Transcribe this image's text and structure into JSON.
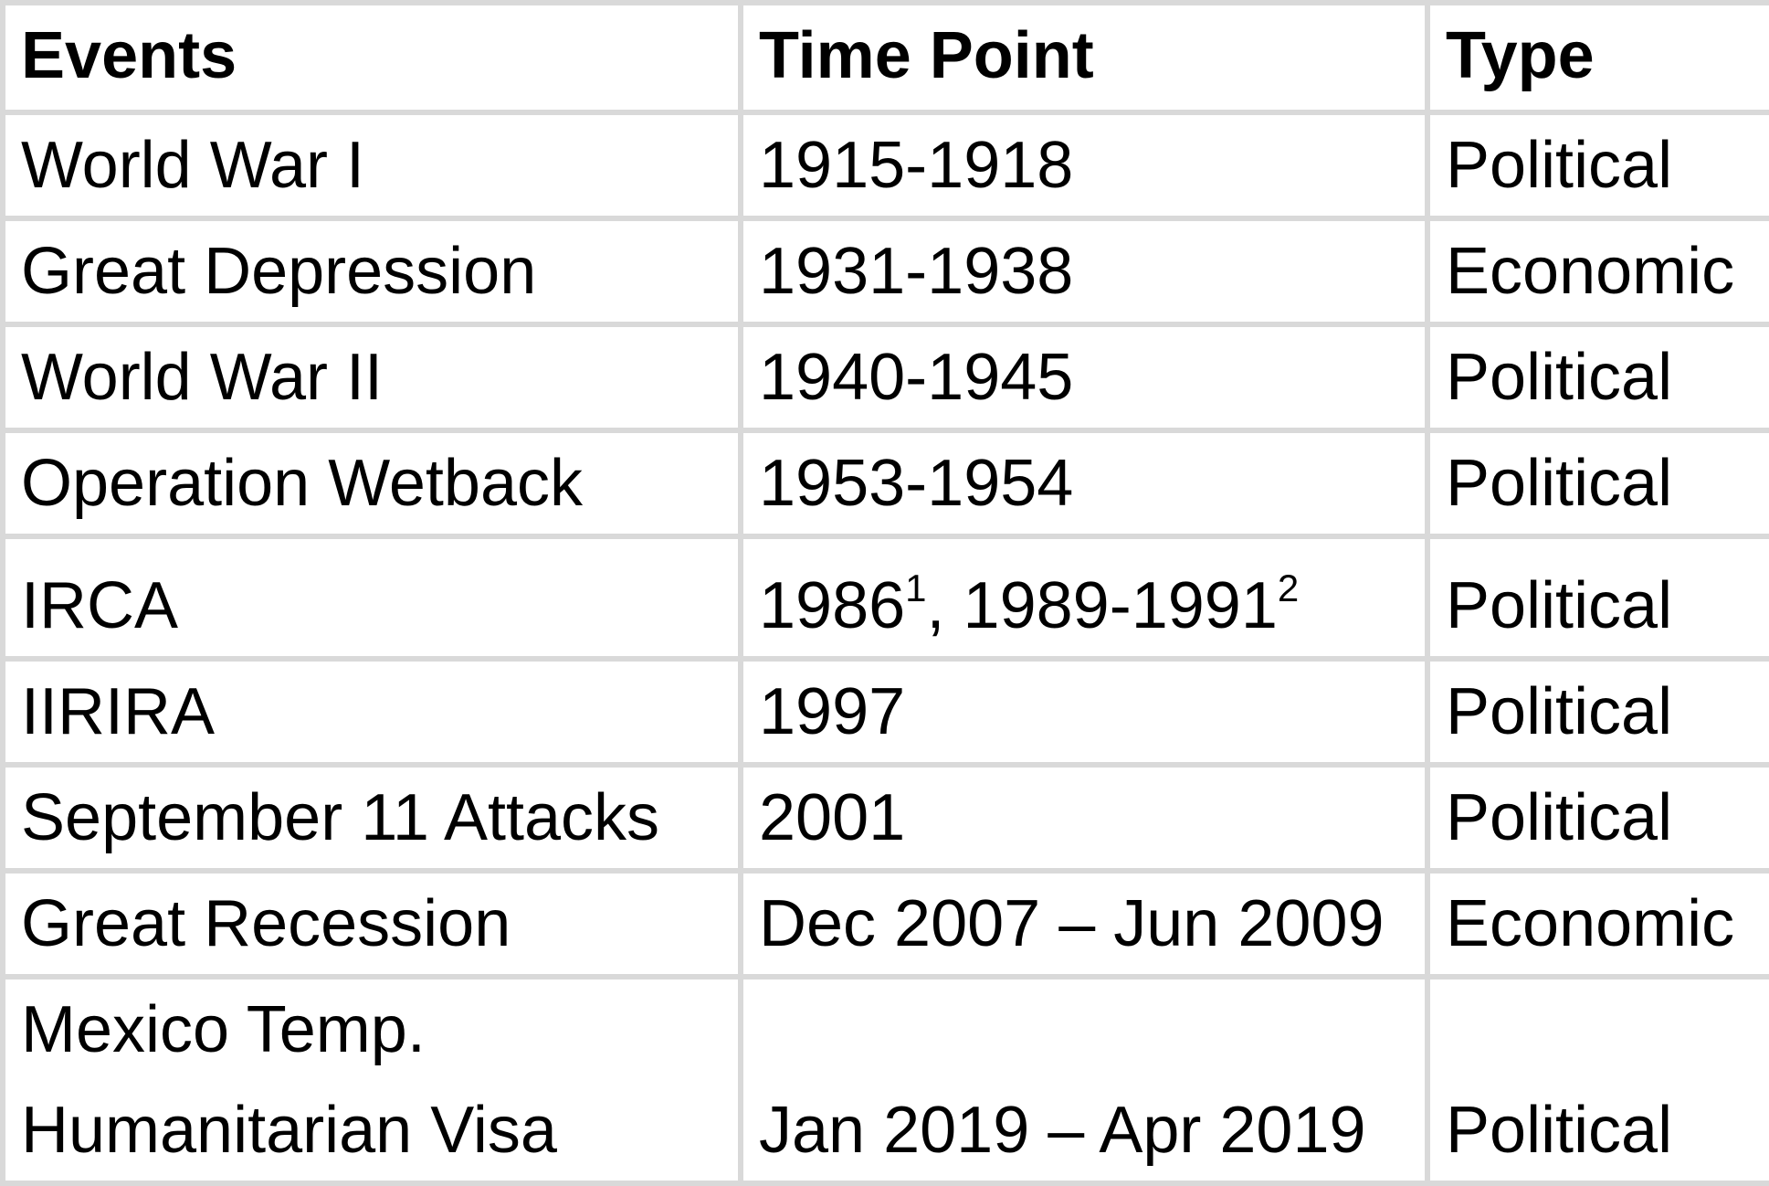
{
  "table": {
    "headers": [
      "Events",
      "Time Point",
      "Type"
    ],
    "rows": [
      {
        "event": "World War I",
        "time": "1915-1918",
        "type": "Political"
      },
      {
        "event": "Great Depression",
        "time": "1931-1938",
        "type": "Economic"
      },
      {
        "event": "World War II",
        "time": "1940-1945",
        "type": "Political"
      },
      {
        "event": "Operation Wetback",
        "time": "1953-1954",
        "type": "Political"
      },
      {
        "event": "IRCA",
        "time_a": "1986",
        "time_a_note": "1",
        "time_sep": ", ",
        "time_b": "1989-1991",
        "time_b_note": "2",
        "type": "Political"
      },
      {
        "event": "IIRIRA",
        "time": "1997",
        "type": "Political"
      },
      {
        "event": "September 11 Attacks",
        "time": "2001",
        "type": "Political"
      },
      {
        "event": "Great Recession",
        "time": "Dec 2007 – Jun 2009",
        "type": "Economic"
      },
      {
        "event_line1": "Mexico Temp.",
        "event_line2": "Humanitarian Visa",
        "time": "Jan 2019 – Apr 2019",
        "type": "Political"
      }
    ]
  }
}
